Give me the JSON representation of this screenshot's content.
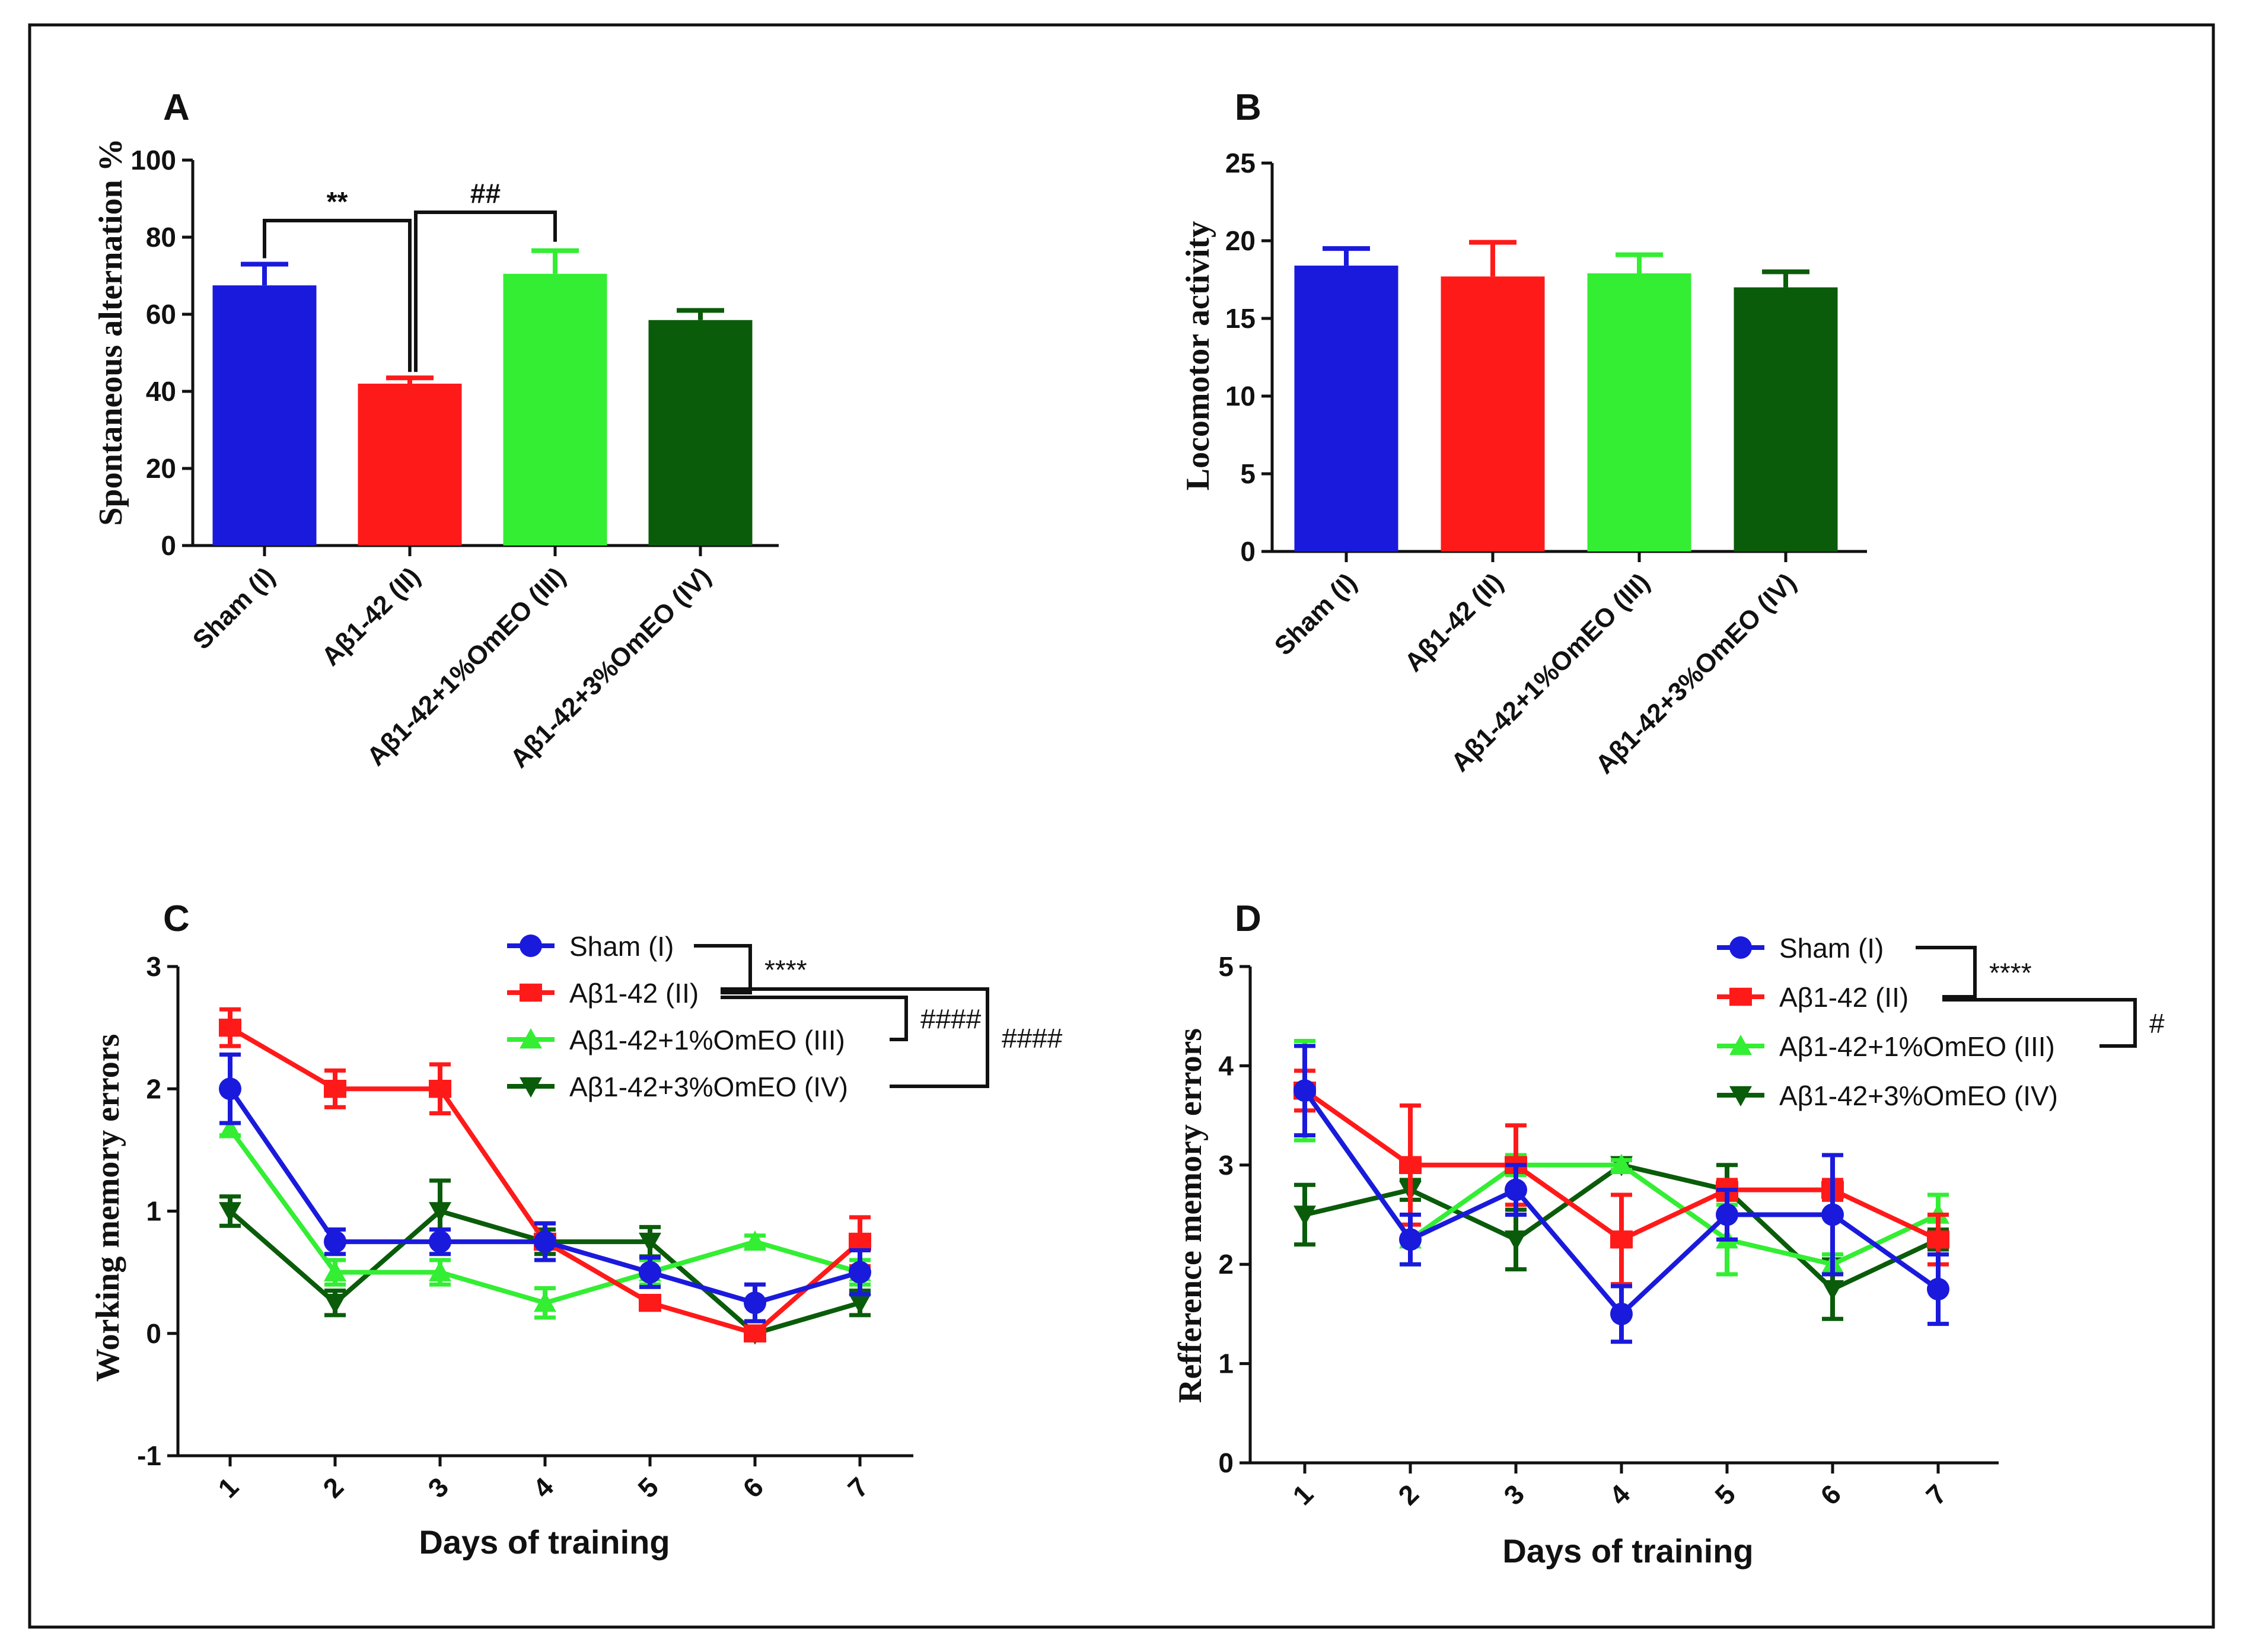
{
  "chart_data": [
    {
      "id": "A",
      "type": "bar",
      "panel_label": "A",
      "ylabel": "Spontaneous alternation %",
      "xlabel": "",
      "ylim": [
        0,
        100
      ],
      "yticks": [
        0,
        20,
        40,
        60,
        80,
        100
      ],
      "categories": [
        "Sham (I)",
        "Aβ1-42 (II)",
        "Aβ1-42+1%OmEO (III)",
        "Aβ1-42+3%OmEO (IV)"
      ],
      "values": [
        67.5,
        42,
        70.5,
        58.5
      ],
      "errors": [
        5.5,
        1.5,
        6,
        2.5
      ],
      "colors": [
        "#1a1adc",
        "#ff1a1a",
        "#33ee33",
        "#0a5c0a"
      ],
      "significance": [
        {
          "from": 0,
          "to": 1,
          "label": "**"
        },
        {
          "from": 1,
          "to": 2,
          "label": "##"
        }
      ]
    },
    {
      "id": "B",
      "type": "bar",
      "panel_label": "B",
      "ylabel": "Locomotor activity",
      "xlabel": "",
      "ylim": [
        0,
        25
      ],
      "yticks": [
        0,
        5,
        10,
        15,
        20,
        25
      ],
      "categories": [
        "Sham (I)",
        "Aβ1-42 (II)",
        "Aβ1-42+1%OmEO (III)",
        "Aβ1-42+3%OmEO (IV)"
      ],
      "values": [
        18.4,
        17.7,
        17.9,
        17.0
      ],
      "errors": [
        1.1,
        2.2,
        1.2,
        1.0
      ],
      "colors": [
        "#1a1adc",
        "#ff1a1a",
        "#33ee33",
        "#0a5c0a"
      ]
    },
    {
      "id": "C",
      "type": "line",
      "panel_label": "C",
      "xlabel": "Days of training",
      "ylabel": "Working memory errors",
      "x": [
        1,
        2,
        3,
        4,
        5,
        6,
        7
      ],
      "xticks": [
        "1",
        "2",
        "3",
        "4",
        "5",
        "6",
        "7"
      ],
      "ylim": [
        -1,
        3
      ],
      "yticks": [
        -1,
        0,
        1,
        2,
        3
      ],
      "series": [
        {
          "name": "Sham (I)",
          "marker": "circle",
          "color": "#1a1adc",
          "values": [
            2.0,
            0.75,
            0.75,
            0.75,
            0.5,
            0.25,
            0.5
          ],
          "errors": [
            0.28,
            0.1,
            0.1,
            0.15,
            0.12,
            0.15,
            0.18
          ]
        },
        {
          "name": "Aβ1-42 (II)",
          "marker": "square",
          "color": "#ff1a1a",
          "values": [
            2.5,
            2.0,
            2.0,
            0.75,
            0.25,
            0.0,
            0.75
          ],
          "errors": [
            0.15,
            0.15,
            0.2,
            0.15,
            0.05,
            0.05,
            0.2
          ]
        },
        {
          "name": "Aβ1-42+1%OmEO (III)",
          "marker": "triangle-up",
          "color": "#33ee33",
          "values": [
            1.67,
            0.5,
            0.5,
            0.25,
            0.5,
            0.75,
            0.5
          ],
          "errors": [
            0.05,
            0.1,
            0.1,
            0.12,
            0.1,
            0.05,
            0.1
          ]
        },
        {
          "name": "Aβ1-42+3%OmEO (IV)",
          "marker": "triangle-down",
          "color": "#0a5c0a",
          "values": [
            1.0,
            0.25,
            1.0,
            0.75,
            0.75,
            0.0,
            0.25
          ],
          "errors": [
            0.12,
            0.1,
            0.25,
            0.1,
            0.12,
            0.05,
            0.1
          ]
        }
      ],
      "significance": [
        {
          "pair": [
            0,
            1
          ],
          "label": "****"
        },
        {
          "pair": [
            1,
            2
          ],
          "label": "####"
        },
        {
          "pair": [
            1,
            3
          ],
          "label": "####"
        }
      ]
    },
    {
      "id": "D",
      "type": "line",
      "panel_label": "D",
      "xlabel": "Days of training",
      "ylabel": "Refference memory errors",
      "x": [
        1,
        2,
        3,
        4,
        5,
        6,
        7
      ],
      "xticks": [
        "1",
        "2",
        "3",
        "4",
        "5",
        "6",
        "7"
      ],
      "ylim": [
        0,
        5
      ],
      "yticks": [
        0,
        1,
        2,
        3,
        4,
        5
      ],
      "series": [
        {
          "name": "Sham (I)",
          "marker": "circle",
          "color": "#1a1adc",
          "values": [
            3.75,
            2.25,
            2.75,
            1.5,
            2.5,
            2.5,
            1.75
          ],
          "errors": [
            0.45,
            0.25,
            0.25,
            0.28,
            0.25,
            0.6,
            0.35
          ]
        },
        {
          "name": "Aβ1-42 (II)",
          "marker": "square",
          "color": "#ff1a1a",
          "values": [
            3.75,
            3.0,
            3.0,
            2.25,
            2.75,
            2.75,
            2.25
          ],
          "errors": [
            0.2,
            0.6,
            0.4,
            0.45,
            0.1,
            0.1,
            0.25
          ]
        },
        {
          "name": "Aβ1-42+1%OmEO (III)",
          "marker": "triangle-up",
          "color": "#33ee33",
          "values": [
            3.75,
            2.25,
            3.0,
            3.0,
            2.25,
            2.0,
            2.5
          ],
          "errors": [
            0.5,
            0.25,
            0.1,
            0.05,
            0.35,
            0.1,
            0.2
          ]
        },
        {
          "name": "Aβ1-42+3%OmEO (IV)",
          "marker": "triangle-down",
          "color": "#0a5c0a",
          "values": [
            2.5,
            2.75,
            2.25,
            3.0,
            2.75,
            1.75,
            2.25
          ],
          "errors": [
            0.3,
            0.1,
            0.3,
            0.05,
            0.25,
            0.3,
            0.1
          ]
        }
      ],
      "significance": [
        {
          "pair": [
            0,
            1
          ],
          "label": "****"
        },
        {
          "pair": [
            1,
            2
          ],
          "label": "#"
        }
      ]
    }
  ]
}
